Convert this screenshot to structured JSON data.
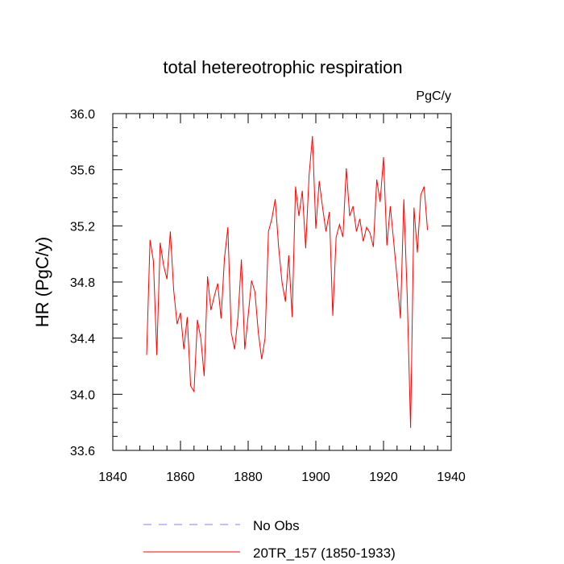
{
  "chart_data": {
    "type": "line",
    "title": "total hetereotrophic respiration",
    "units": "PgC/y",
    "xlabel": "",
    "ylabel": "HR  (PgC/y)",
    "xlim": [
      1840,
      1940
    ],
    "ylim": [
      33.6,
      36.0
    ],
    "xticks": [
      1840,
      1860,
      1880,
      1900,
      1920,
      1940
    ],
    "yticks": [
      33.6,
      34.0,
      34.4,
      34.8,
      35.2,
      35.6,
      36.0
    ],
    "xtick_labels": [
      "1840",
      "1860",
      "1880",
      "1900",
      "1920",
      "1940"
    ],
    "ytick_labels": [
      "33.6",
      "34.0",
      "34.4",
      "34.8",
      "35.2",
      "35.6",
      "36.0"
    ],
    "legend": [
      {
        "label": "No Obs",
        "color": "#8080ff",
        "style": "dashed"
      },
      {
        "label": "20TR_157 (1850-1933)",
        "color": "#ff0000",
        "style": "solid"
      }
    ],
    "series": [
      {
        "name": "20TR_157 (1850-1933)",
        "color": "#ff0000",
        "x": [
          1850,
          1851,
          1852,
          1853,
          1854,
          1855,
          1856,
          1857,
          1858,
          1859,
          1860,
          1861,
          1862,
          1863,
          1864,
          1865,
          1866,
          1867,
          1868,
          1869,
          1870,
          1871,
          1872,
          1873,
          1874,
          1875,
          1876,
          1877,
          1878,
          1879,
          1880,
          1881,
          1882,
          1883,
          1884,
          1885,
          1886,
          1887,
          1888,
          1889,
          1890,
          1891,
          1892,
          1893,
          1894,
          1895,
          1896,
          1897,
          1898,
          1899,
          1900,
          1901,
          1902,
          1903,
          1904,
          1905,
          1906,
          1907,
          1908,
          1909,
          1910,
          1911,
          1912,
          1913,
          1914,
          1915,
          1916,
          1917,
          1918,
          1919,
          1920,
          1921,
          1922,
          1923,
          1924,
          1925,
          1926,
          1927,
          1928,
          1929,
          1930,
          1931,
          1932,
          1933
        ],
        "values": [
          34.28,
          35.1,
          34.95,
          34.28,
          35.08,
          34.92,
          34.82,
          35.16,
          34.74,
          34.5,
          34.58,
          34.32,
          34.55,
          34.06,
          34.02,
          34.53,
          34.4,
          34.13,
          34.84,
          34.6,
          34.7,
          34.79,
          34.54,
          34.97,
          35.19,
          34.44,
          34.32,
          34.55,
          34.96,
          34.32,
          34.56,
          34.81,
          34.73,
          34.44,
          34.25,
          34.4,
          35.16,
          35.25,
          35.39,
          35.05,
          34.8,
          34.66,
          34.99,
          34.55,
          35.48,
          35.27,
          35.45,
          35.04,
          35.56,
          35.84,
          35.18,
          35.52,
          35.33,
          35.16,
          35.3,
          34.56,
          35.12,
          35.21,
          35.12,
          35.61,
          35.27,
          35.34,
          35.16,
          35.25,
          35.09,
          35.19,
          35.15,
          35.05,
          35.53,
          35.37,
          35.69,
          35.06,
          35.34,
          35.09,
          34.83,
          34.54,
          35.39,
          34.7,
          33.76,
          35.33,
          35.01,
          35.42,
          35.48,
          35.17
        ]
      }
    ]
  }
}
